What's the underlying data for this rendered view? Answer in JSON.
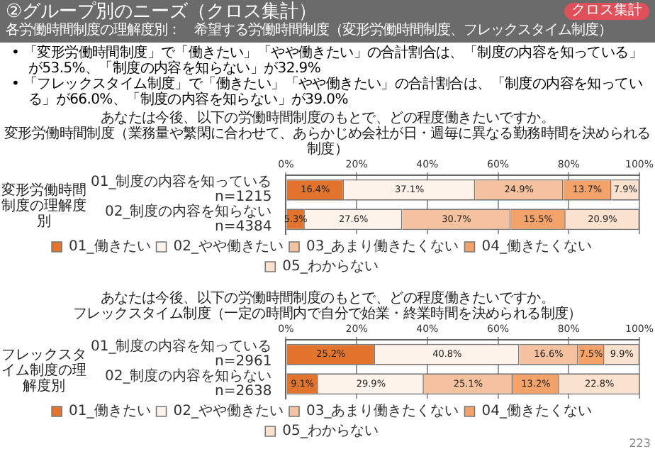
{
  "chart_data": [
    {
      "type": "other",
      "title": "②グループ別のニーズ（クロス集計）",
      "subtitle": "各労働時間制度の理解度別：　希望する労働時間制度（変形労働時間制度、フレックスタイム制度）",
      "annotations": [
        "クロス集計",
        "• 「変形労働時間制度」で「働きたい」「やや働きたい」の合計割合は、「制度の内容を知っている」が53.5%、「制度の内容を知らない」が32.9%",
        "• 「フレックスタイム制度」で「働きたい」「やや働きたい」の合計割合は、「制度の内容を知っている」が66.0%、「制度の内容を知らない」が39.0%",
        "223"
      ]
    },
    {
      "type": "bar",
      "orientation": "horizontal",
      "stacked": true,
      "title": "あなたは今後、以下の労働時間制度のもとで、どの程度働きたいですか。",
      "subtitle": "変形労働時間制度（業務量や繁閑に合わせて、あらかじめ会社が日・週毎に異なる勤務時間を決められる制度）",
      "ylabel": "変形労働時間制度の理解度別",
      "categories": [
        "01_制度の内容を知っている\nn=1215",
        "02_制度の内容を知らない\nn=4384"
      ],
      "series": [
        {
          "name": "01_働きたい",
          "color": "#e2742e",
          "values": [
            16.4,
            5.3
          ],
          "value_labels": [
            "16.4%",
            "5.3%"
          ]
        },
        {
          "name": "02_やや働きたい",
          "color": "#fdf3ea",
          "values": [
            37.1,
            27.6
          ],
          "value_labels": [
            "37.1%",
            "27.6%"
          ]
        },
        {
          "name": "03_あまり働きたくない",
          "color": "#f5c29f",
          "values": [
            24.9,
            30.7
          ],
          "value_labels": [
            "24.9%",
            "30.7%"
          ]
        },
        {
          "name": "04_働きたくない",
          "color": "#f3a36a",
          "values": [
            13.7,
            15.5
          ],
          "value_labels": [
            "13.7%",
            "15.5%"
          ]
        },
        {
          "name": "05_わからない",
          "color": "#fbe2cf",
          "values": [
            7.9,
            20.9
          ],
          "value_labels": [
            "7.9%",
            "20.9%"
          ]
        }
      ],
      "xlim": [
        0,
        100
      ],
      "xticks": [
        {
          "value": 0,
          "label": "0%"
        },
        {
          "value": 20,
          "label": "20%"
        },
        {
          "value": 40,
          "label": "40%"
        },
        {
          "value": 60,
          "label": "60%"
        },
        {
          "value": 80,
          "label": "80%"
        },
        {
          "value": 100,
          "label": "100%"
        }
      ],
      "grid": "x",
      "legend": "bottom"
    },
    {
      "type": "bar",
      "orientation": "horizontal",
      "stacked": true,
      "title": "あなたは今後、以下の労働時間制度のもとで、どの程度働きたいですか。",
      "subtitle": "フレックスタイム制度（一定の時間内で自分で始業・終業時間を決められる制度）",
      "ylabel": "フレックスタイム制度の理解度別",
      "categories": [
        "01_制度の内容を知っている\nn=2961",
        "02_制度の内容を知らない\nn=2638"
      ],
      "series": [
        {
          "name": "01_働きたい",
          "color": "#e2742e",
          "values": [
            25.2,
            9.1
          ],
          "value_labels": [
            "25.2%",
            "9.1%"
          ]
        },
        {
          "name": "02_やや働きたい",
          "color": "#fdf3ea",
          "values": [
            40.8,
            29.9
          ],
          "value_labels": [
            "40.8%",
            "29.9%"
          ]
        },
        {
          "name": "03_あまり働きたくない",
          "color": "#f5c29f",
          "values": [
            16.6,
            25.1
          ],
          "value_labels": [
            "16.6%",
            "25.1%"
          ]
        },
        {
          "name": "04_働きたくない",
          "color": "#f3a36a",
          "values": [
            7.5,
            13.2
          ],
          "value_labels": [
            "7.5%",
            "13.2%"
          ]
        },
        {
          "name": "05_わからない",
          "color": "#fbe2cf",
          "values": [
            9.9,
            22.8
          ],
          "value_labels": [
            "9.9%",
            "22.8%"
          ]
        }
      ],
      "xlim": [
        0,
        100
      ],
      "xticks": [
        {
          "value": 0,
          "label": "0%"
        },
        {
          "value": 20,
          "label": "20%"
        },
        {
          "value": 40,
          "label": "40%"
        },
        {
          "value": 60,
          "label": "60%"
        },
        {
          "value": 80,
          "label": "80%"
        },
        {
          "value": 100,
          "label": "100%"
        }
      ],
      "grid": "x",
      "legend": "bottom"
    }
  ]
}
